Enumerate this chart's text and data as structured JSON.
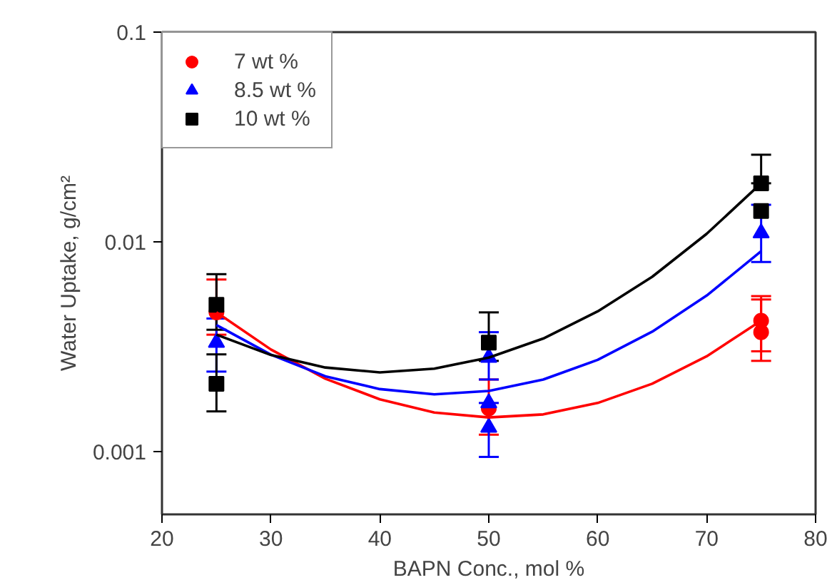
{
  "chart_data": {
    "type": "scatter",
    "xlabel": "BAPN Conc., mol %",
    "ylabel": "Water Uptake, g/cm²",
    "log": "y",
    "xlim": [
      20,
      80
    ],
    "xticks": [
      20,
      30,
      40,
      50,
      60,
      70,
      80
    ],
    "ylim": [
      0.0005,
      0.1
    ],
    "yticks": [
      {
        "value": 0.001,
        "label": "0.001"
      },
      {
        "value": 0.01,
        "label": "0.01"
      },
      {
        "value": 0.1,
        "label": "0.1"
      }
    ],
    "grid": false,
    "legend": "top left",
    "series": [
      {
        "name": "7 wt %",
        "color": "#ff0000",
        "marker": "circle",
        "x": [
          25,
          50,
          75,
          75
        ],
        "values": [
          0.0046,
          0.0016,
          0.0042,
          0.0037
        ],
        "errors": [
          [
            0.0036,
            0.0066
          ],
          [
            0.0012,
            0.0022
          ],
          [
            0.003,
            0.0055
          ],
          [
            0.0027,
            0.0053
          ]
        ]
      },
      {
        "name": "8.5 wt %",
        "color": "#0000ff",
        "marker": "triangle",
        "x": [
          25,
          50,
          50,
          50,
          75
        ],
        "values": [
          0.0033,
          0.0028,
          0.0017,
          0.0013,
          0.011
        ],
        "errors": [
          [
            0.0024,
            0.0043
          ],
          [
            0.0022,
            0.0037
          ],
          null,
          [
            0.00094,
            0.0017
          ],
          [
            0.008,
            0.015
          ]
        ]
      },
      {
        "name": "10 wt %",
        "color": "#000000",
        "marker": "square",
        "x": [
          25,
          25,
          50,
          75,
          75
        ],
        "values": [
          0.005,
          0.0021,
          0.0033,
          0.019,
          0.014
        ],
        "errors": [
          [
            0.0038,
            0.007
          ],
          [
            0.00155,
            0.0029
          ],
          [
            0.0027,
            0.0046
          ],
          [
            0.019,
            0.026
          ],
          null
        ]
      },
      {
        "color": "#ff0000",
        "type": "line",
        "marker": "none",
        "x": [
          25,
          30,
          35,
          40,
          45,
          50,
          55,
          60,
          65,
          70,
          75
        ],
        "values": [
          0.0046,
          0.00306,
          0.00222,
          0.00177,
          0.00153,
          0.00145,
          0.0015,
          0.0017,
          0.0021,
          0.00284,
          0.0042
        ]
      },
      {
        "color": "#0000ff",
        "type": "line",
        "marker": "none",
        "x": [
          25,
          30,
          35,
          40,
          45,
          50,
          55,
          60,
          65,
          70,
          75
        ],
        "values": [
          0.004,
          0.00289,
          0.00228,
          0.00198,
          0.00187,
          0.00194,
          0.0022,
          0.00273,
          0.00372,
          0.00553,
          0.009
        ]
      },
      {
        "color": "#000000",
        "type": "line",
        "marker": "none",
        "x": [
          25,
          30,
          35,
          40,
          45,
          50,
          55,
          60,
          65,
          70,
          75
        ],
        "values": [
          0.0036,
          0.00288,
          0.00251,
          0.00238,
          0.00248,
          0.0028,
          0.00345,
          0.00465,
          0.0068,
          0.0109,
          0.019
        ]
      }
    ]
  }
}
